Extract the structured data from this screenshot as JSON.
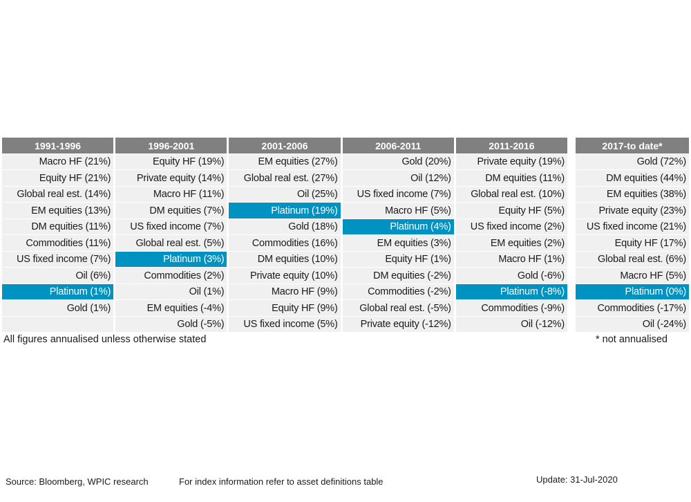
{
  "chart_data": {
    "type": "table",
    "periods": [
      "1991-1996",
      "1996-2001",
      "2001-2006",
      "2006-2011",
      "2011-2016"
    ],
    "side_period": "2017-to date*",
    "columns": [
      [
        "Macro HF (21%)",
        "Equity HF (21%)",
        "Global real est. (14%)",
        "EM equities (13%)",
        "DM equities (11%)",
        "Commodities (11%)",
        "US fixed income (7%)",
        "Oil (6%)",
        "Platinum (1%)",
        "Gold (1%)",
        ""
      ],
      [
        "Equity HF (19%)",
        "Private equity (14%)",
        "Macro HF (11%)",
        "DM equities (7%)",
        "US fixed income (7%)",
        "Global real est. (5%)",
        "Platinum (3%)",
        "Commodities (2%)",
        "Oil (1%)",
        "EM equities (-4%)",
        "Gold (-5%)"
      ],
      [
        "EM equities (27%)",
        "Global real est. (27%)",
        "Oil (25%)",
        "Platinum (19%)",
        "Gold (18%)",
        "Commodities (16%)",
        "DM equities (10%)",
        "Private equity (10%)",
        "Macro HF (9%)",
        "Equity HF (9%)",
        "US fixed income (5%)"
      ],
      [
        "Gold (20%)",
        "Oil (12%)",
        "US fixed income (7%)",
        "Macro HF (5%)",
        "Platinum (4%)",
        "EM equities (3%)",
        "Equity HF (1%)",
        "DM equities (-2%)",
        "Commodities (-2%)",
        "Global real est. (-5%)",
        "Private equity (-12%)"
      ],
      [
        "Private equity (19%)",
        "DM equities (11%)",
        "Global real est. (10%)",
        "Equity HF (5%)",
        "US fixed income (2%)",
        "EM equities (2%)",
        "Macro HF (1%)",
        "Gold (-6%)",
        "Platinum (-8%)",
        "Commodities (-9%)",
        "Oil (-12%)"
      ]
    ],
    "side_column": [
      "Gold (72%)",
      "DM equities (44%)",
      "EM equities (38%)",
      "Private equity (23%)",
      "US fixed income (21%)",
      "Equity HF (17%)",
      "Global real est. (6%)",
      "Macro HF (5%)",
      "Platinum (0%)",
      "Commodities (-17%)",
      "Oil (-24%)"
    ],
    "highlight_asset": "Platinum",
    "colors": {
      "header_bg": "#808080",
      "cell_bg": "#f0f0f0",
      "highlight_bg": "#0092c0"
    }
  },
  "notes": {
    "left": "All figures annualised unless otherwise stated",
    "right": "* not annualised"
  },
  "footer": {
    "source": "Source: Bloomberg, WPIC research",
    "index_info": "For index information refer to asset definitions table",
    "update": "Update: 31-Jul-2020"
  }
}
